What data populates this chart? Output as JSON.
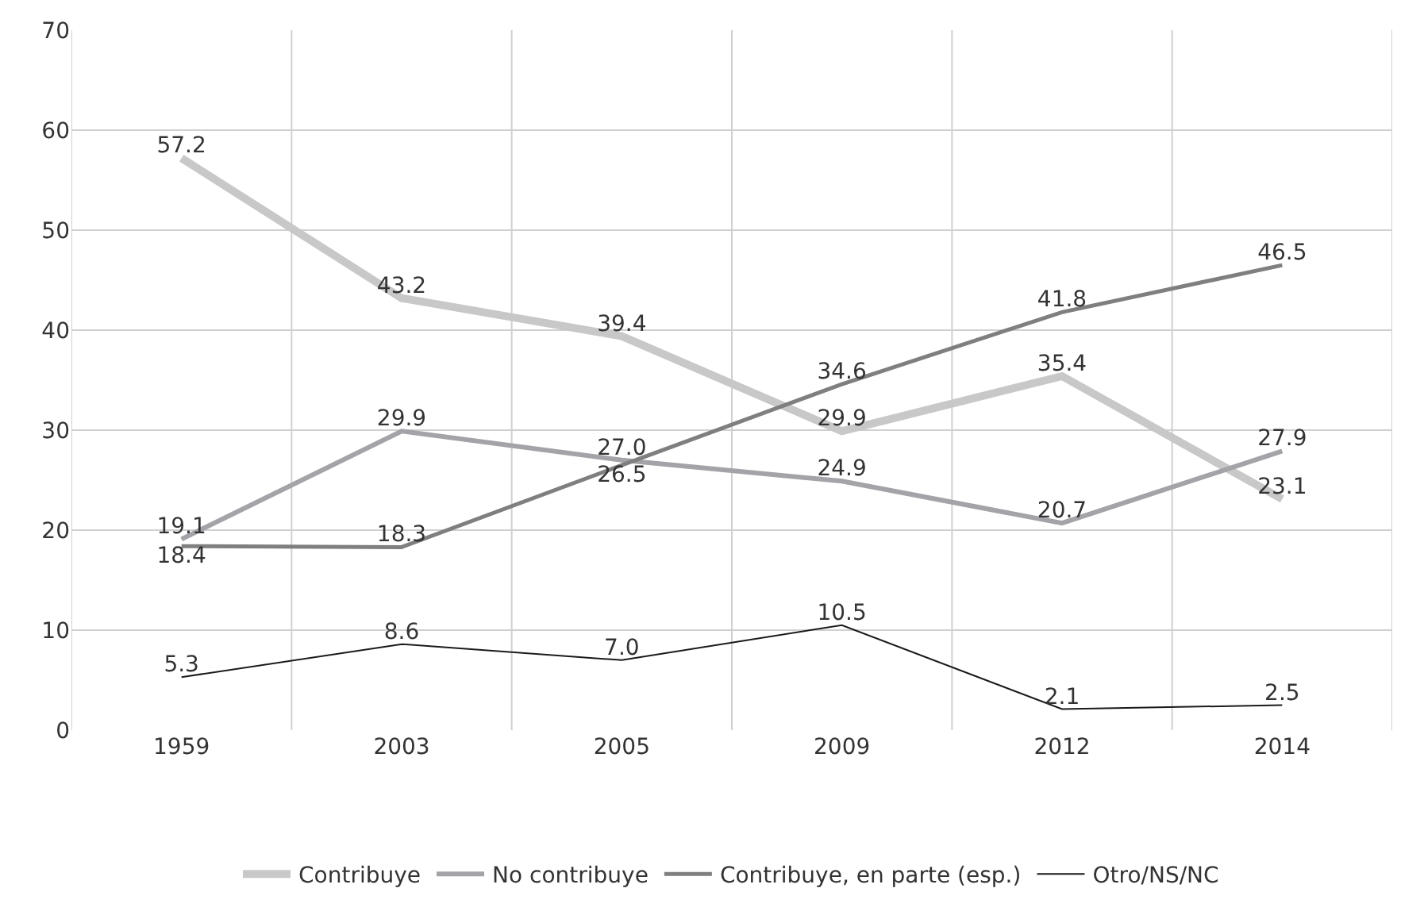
{
  "chart_data": {
    "type": "line",
    "categories": [
      "1959",
      "2003",
      "2005",
      "2009",
      "2012",
      "2014"
    ],
    "series": [
      {
        "name": "Contribuye",
        "color": "#c8c8c8",
        "values": [
          57.2,
          43.2,
          39.4,
          29.9,
          35.4,
          23.1
        ],
        "value_labels": [
          "57.2",
          "43.2",
          "39.4",
          "29.9",
          "35.4",
          "23.1"
        ]
      },
      {
        "name": "No contribuye",
        "color": "#a3a3a8",
        "values": [
          19.1,
          29.9,
          27.0,
          24.9,
          20.7,
          27.9
        ],
        "value_labels": [
          "19.1",
          "29.9",
          "27.0",
          "24.9",
          "20.7",
          "27.9"
        ]
      },
      {
        "name": "Contribuye, en parte (esp.)",
        "color": "#7f7f7f",
        "values": [
          18.4,
          18.3,
          26.5,
          34.6,
          41.8,
          46.5
        ],
        "value_labels": [
          "18.4",
          "18.3",
          "26.5",
          "34.6",
          "41.8",
          "46.5"
        ]
      },
      {
        "name": "Otro/NS/NC",
        "color": "#1a1a1a",
        "values": [
          5.3,
          8.6,
          7.0,
          10.5,
          2.1,
          2.5
        ],
        "value_labels": [
          "5.3",
          "8.6",
          "7.0",
          "10.5",
          "2.1",
          "2.5"
        ]
      }
    ],
    "ylim": [
      0,
      70
    ],
    "yticks": [
      0,
      10,
      20,
      30,
      40,
      50,
      60,
      70
    ],
    "grid": true,
    "legend": "bottom",
    "marker": "none",
    "line_style": "solid"
  }
}
